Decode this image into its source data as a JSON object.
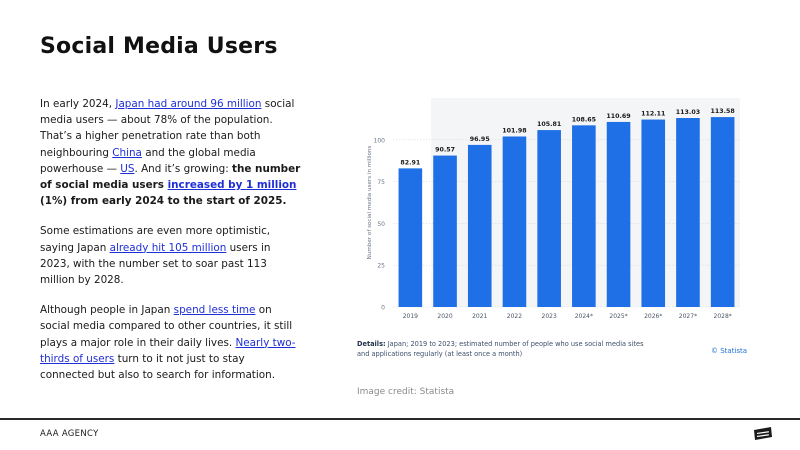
{
  "slide": {
    "title": "Social Media Users",
    "agency": "AAA AGENCY",
    "image_credit": "Image credit: Statista"
  },
  "body": {
    "p1": {
      "t1": "In early 2024, ",
      "link1": "Japan had around 96 million",
      "t2": " social media users — about 78% of the population. That’s a higher penetration rate than both neighbouring ",
      "link2": "China",
      "t3": " and the global media powerhouse — ",
      "link3": "US",
      "t4": ". And it’s growing: ",
      "b1": "the number of social media users ",
      "link4": "increased by 1 million",
      "b2": " (1%) from early 2024 to the start of 2025."
    },
    "p2": {
      "t1": "Some estimations are even more optimistic, saying Japan ",
      "link1": "already hit 105 million",
      "t2": " users in 2023, with the number set to soar past 113 million by 2028."
    },
    "p3": {
      "t1": "Although people in Japan ",
      "link1": "spend less time",
      "t2": " on social media compared to other countries, it still plays a major role in their daily lives. ",
      "link2": "Nearly two-thirds of users",
      "t3": " turn to it not just to stay connected but also to search for information."
    }
  },
  "chart_notes": {
    "details_label": "Details:",
    "details_text": " Japan; 2019 to 2023; estimated number of people who use social media sites and applications regularly (at least once a month)",
    "source": "© Statista"
  },
  "chart_data": {
    "type": "bar",
    "categories": [
      "2019",
      "2020",
      "2021",
      "2022",
      "2023",
      "2024*",
      "2025*",
      "2026*",
      "2027*",
      "2028*"
    ],
    "values": [
      82.91,
      90.57,
      96.95,
      101.98,
      105.81,
      108.65,
      110.69,
      112.11,
      113.03,
      113.58
    ],
    "value_labels": [
      "82.91",
      "90.57",
      "96.95",
      "101.98",
      "105.81",
      "108.65",
      "110.69",
      "112.11",
      "113.03",
      "113.58"
    ],
    "ylabel": "Number of social media users in millions",
    "yticks": [
      "0",
      "25",
      "50",
      "75",
      "100"
    ],
    "ylim": [
      0,
      125
    ],
    "bar_color": "#1f6fe6",
    "forecast_shade_color": "#f4f5f7",
    "grid": true,
    "legend": "none"
  }
}
